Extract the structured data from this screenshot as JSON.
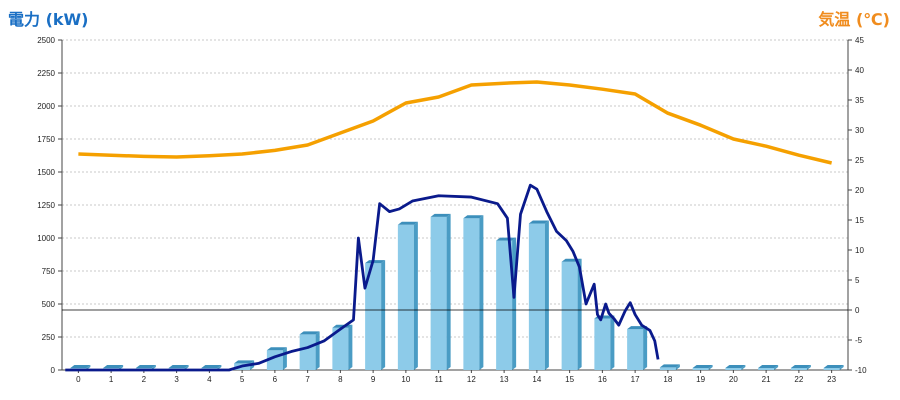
{
  "chart_data": {
    "type": "bar+line",
    "title_left": "電力 (kW)",
    "title_right": "気温 (℃)",
    "categories": [
      "0",
      "1",
      "2",
      "3",
      "4",
      "5",
      "6",
      "7",
      "8",
      "9",
      "10",
      "11",
      "12",
      "13",
      "14",
      "15",
      "16",
      "17",
      "18",
      "19",
      "20",
      "21",
      "22",
      "23"
    ],
    "y_left": {
      "min": 0,
      "max": 2500,
      "ticks": [
        0,
        250,
        500,
        750,
        1000,
        1250,
        1500,
        1750,
        2000,
        2250,
        2500
      ]
    },
    "y_right": {
      "min": -10,
      "max": 45,
      "ticks": [
        -10,
        -5,
        0,
        5,
        10,
        15,
        20,
        25,
        30,
        35,
        40,
        45
      ]
    },
    "bars": {
      "name": "",
      "values": [
        15,
        15,
        15,
        15,
        15,
        50,
        150,
        270,
        320,
        810,
        1100,
        1160,
        1150,
        980,
        1110,
        820,
        390,
        310,
        20,
        15,
        15,
        15,
        15,
        15
      ],
      "color": "#8dcbe9"
    },
    "power_line": {
      "name": "",
      "color": "#0a1a8c",
      "x": [
        -0.4,
        0,
        1,
        2,
        3,
        4,
        4.6,
        5,
        5.5,
        6,
        6.5,
        7,
        7.5,
        8,
        8.4,
        8.55,
        8.75,
        9,
        9.2,
        9.5,
        9.8,
        10.2,
        11,
        12,
        12.8,
        13.1,
        13.3,
        13.5,
        13.8,
        14,
        14.3,
        14.6,
        14.9,
        15.1,
        15.3,
        15.5,
        15.75,
        15.85,
        15.95,
        16.1,
        16.2,
        16.35,
        16.5,
        16.7,
        16.85,
        17,
        17.2,
        17.45,
        17.6,
        17.7
      ],
      "y": [
        0,
        0,
        0,
        0,
        0,
        0,
        0,
        30,
        50,
        100,
        140,
        170,
        220,
        310,
        380,
        1000,
        620,
        830,
        1260,
        1200,
        1220,
        1280,
        1320,
        1310,
        1260,
        1150,
        550,
        1180,
        1400,
        1370,
        1200,
        1050,
        980,
        900,
        780,
        500,
        650,
        420,
        380,
        500,
        430,
        390,
        340,
        450,
        510,
        420,
        340,
        300,
        220,
        80
      ]
    },
    "temp_line": {
      "name": "",
      "color": "#f5a000",
      "x": [
        0,
        1,
        2,
        3,
        4,
        5,
        6,
        7,
        8,
        9,
        10,
        11,
        12,
        13,
        14,
        15,
        16,
        17,
        18,
        19,
        20,
        21,
        22,
        23
      ],
      "y": [
        26,
        25.8,
        25.6,
        25.5,
        25.7,
        26,
        26.6,
        27.5,
        29.5,
        31.5,
        34.5,
        35.5,
        37.5,
        37.8,
        38,
        37.5,
        36.8,
        36,
        32.8,
        30.8,
        28.5,
        27.3,
        25.8,
        24.5
      ]
    },
    "reference_line": {
      "axis": "right",
      "value": 0
    },
    "grid": "horizontal-dotted"
  }
}
